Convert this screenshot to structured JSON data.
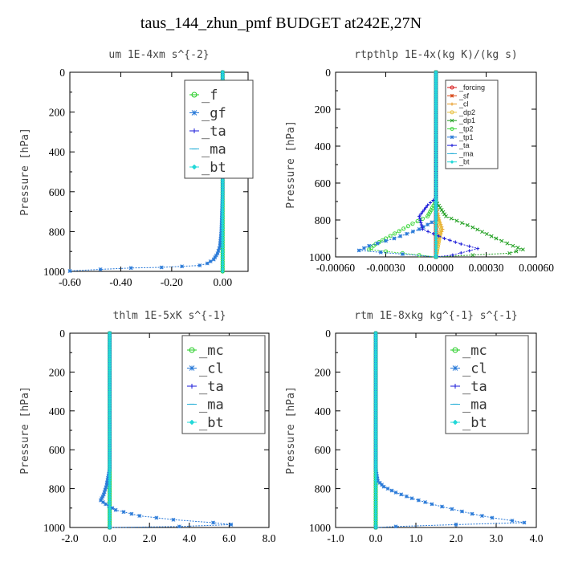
{
  "figure_title": "taus_144_zhun_pmf  BUDGET at242E,27N",
  "chart_data": [
    {
      "type": "line",
      "title": "um   1E-4xm s^{-2}",
      "ylabel": "Pressure [hPa]",
      "xlim": [
        -0.6,
        0.1
      ],
      "ylim": [
        1000,
        0
      ],
      "xticks": [
        "-0.60",
        "-0.40",
        "-0.20",
        "0.00"
      ],
      "xtick_values": [
        -0.6,
        -0.4,
        -0.2,
        0.0
      ],
      "yticks": [
        "0",
        "200",
        "400",
        "600",
        "800",
        "1000"
      ],
      "legend": {
        "position": "top-right",
        "style": "large"
      },
      "series": [
        {
          "name": "_f",
          "color": "#22cc22",
          "marker": "circle",
          "points": [
            [
              0,
              0
            ],
            [
              0,
              1000
            ]
          ]
        },
        {
          "name": "_gf",
          "color": "#2a7ad8",
          "marker": "star",
          "points": [
            [
              0,
              0
            ],
            [
              0,
              600
            ],
            [
              -0.005,
              800
            ],
            [
              -0.01,
              870
            ],
            [
              -0.02,
              910
            ],
            [
              -0.035,
              940
            ],
            [
              -0.06,
              960
            ],
            [
              -0.09,
              970
            ],
            [
              -0.16,
              975
            ],
            [
              -0.24,
              980
            ],
            [
              -0.36,
              983
            ],
            [
              -0.48,
              990
            ],
            [
              -0.6,
              998
            ]
          ]
        },
        {
          "name": "_ta",
          "color": "#1a1ad8",
          "marker": "plus",
          "points": [
            [
              0,
              0
            ],
            [
              0,
              1000
            ]
          ]
        },
        {
          "name": "_ma",
          "color": "#2ab0d8",
          "marker": "dash",
          "points": [
            [
              0,
              0
            ],
            [
              0,
              1000
            ]
          ]
        },
        {
          "name": "_bt",
          "color": "#22d8d8",
          "marker": "diamond",
          "points": [
            [
              0,
              0
            ],
            [
              0,
              1000
            ]
          ]
        }
      ]
    },
    {
      "type": "line",
      "title": "rtpthlp   1E-4x(kg K)/(kg s)",
      "ylabel": "Pressure [hPa]",
      "xlim": [
        -0.0006,
        0.0006
      ],
      "ylim": [
        1000,
        0
      ],
      "xticks": [
        "-0.00060",
        "-0.00030",
        "0.00000",
        "0.00030",
        "0.00060"
      ],
      "xtick_values": [
        -0.0006,
        -0.0003,
        0.0,
        0.0003,
        0.0006
      ],
      "yticks": [
        "0",
        "200",
        "400",
        "600",
        "800",
        "1000"
      ],
      "legend": {
        "position": "top-center",
        "style": "small"
      },
      "series": [
        {
          "name": "_forcing",
          "color": "#d81a1a",
          "marker": "circle",
          "points": [
            [
              0,
              0
            ],
            [
              0,
              1000
            ]
          ]
        },
        {
          "name": "_sf",
          "color": "#d84a1a",
          "marker": "star",
          "points": [
            [
              0,
              0
            ],
            [
              0,
              1000
            ]
          ]
        },
        {
          "name": "_cl",
          "color": "#e89a22",
          "marker": "plus",
          "points": [
            [
              0,
              0
            ],
            [
              0,
              700
            ],
            [
              2e-05,
              800
            ],
            [
              4e-05,
              850
            ],
            [
              2e-05,
              900
            ],
            [
              0,
              1000
            ]
          ]
        },
        {
          "name": "_dp2",
          "color": "#e8c040",
          "marker": "circle",
          "points": [
            [
              0,
              0
            ],
            [
              0,
              750
            ],
            [
              3e-05,
              850
            ],
            [
              0,
              1000
            ]
          ]
        },
        {
          "name": "_dp1",
          "color": "#22a022",
          "marker": "cross",
          "points": [
            [
              0,
              0
            ],
            [
              0,
              700
            ],
            [
              6e-05,
              780
            ],
            [
              0.00022,
              840
            ],
            [
              0.00036,
              900
            ],
            [
              0.00046,
              940
            ],
            [
              0.00052,
              960
            ],
            [
              0.00044,
              980
            ],
            [
              0,
              1000
            ]
          ]
        },
        {
          "name": "_tp2",
          "color": "#44d844",
          "marker": "circle",
          "points": [
            [
              0,
              0
            ],
            [
              0,
              700
            ],
            [
              -5e-05,
              780
            ],
            [
              -0.00014,
              820
            ],
            [
              -0.00022,
              860
            ],
            [
              -0.0003,
              900
            ],
            [
              -0.00036,
              930
            ],
            [
              -0.0004,
              960
            ],
            [
              -0.0001,
              990
            ],
            [
              0,
              1000
            ]
          ]
        },
        {
          "name": "_tp1",
          "color": "#2a7ad8",
          "marker": "star",
          "points": [
            [
              0,
              0
            ],
            [
              0,
              800
            ],
            [
              -0.0001,
              850
            ],
            [
              -0.00025,
              900
            ],
            [
              -0.0004,
              940
            ],
            [
              -0.00046,
              965
            ],
            [
              -0.0002,
              985
            ],
            [
              0,
              1000
            ]
          ]
        },
        {
          "name": "_ta",
          "color": "#1a1ad8",
          "marker": "plus",
          "points": [
            [
              0,
              0
            ],
            [
              0,
              680
            ],
            [
              -5e-05,
              720
            ],
            [
              -0.0001,
              780
            ],
            [
              -8e-05,
              850
            ],
            [
              5e-05,
              900
            ],
            [
              0.00015,
              930
            ],
            [
              0.00025,
              955
            ],
            [
              0.0001,
              990
            ],
            [
              0,
              1000
            ]
          ]
        },
        {
          "name": "_ma",
          "color": "#2ab0d8",
          "marker": "dash",
          "points": [
            [
              0,
              0
            ],
            [
              0,
              1000
            ]
          ]
        },
        {
          "name": "_bt",
          "color": "#22d8d8",
          "marker": "diamond",
          "points": [
            [
              0,
              0
            ],
            [
              0,
              1000
            ]
          ]
        }
      ]
    },
    {
      "type": "line",
      "title": "thlm   1E-5xK s^{-1}",
      "ylabel": "Pressure [hPa]",
      "xlim": [
        -2.0,
        8.0
      ],
      "ylim": [
        1000,
        0
      ],
      "xticks": [
        "-2.0",
        "0.0",
        "2.0",
        "4.0",
        "6.0",
        "8.0"
      ],
      "xtick_values": [
        -2,
        0,
        2,
        4,
        6,
        8
      ],
      "yticks": [
        "0",
        "200",
        "400",
        "600",
        "800",
        "1000"
      ],
      "legend": {
        "position": "top-right",
        "style": "large"
      },
      "series": [
        {
          "name": "_mc",
          "color": "#22cc22",
          "marker": "circle",
          "points": [
            [
              0,
              0
            ],
            [
              0,
              1000
            ]
          ]
        },
        {
          "name": "_cl",
          "color": "#2a7ad8",
          "marker": "star",
          "points": [
            [
              0,
              0
            ],
            [
              0,
              700
            ],
            [
              -0.15,
              780
            ],
            [
              -0.3,
              830
            ],
            [
              -0.45,
              860
            ],
            [
              -0.2,
              880
            ],
            [
              0.3,
              910
            ],
            [
              1.5,
              940
            ],
            [
              3.2,
              960
            ],
            [
              5.2,
              975
            ],
            [
              6.1,
              985
            ],
            [
              3.5,
              995
            ],
            [
              0,
              1000
            ]
          ]
        },
        {
          "name": "_ta",
          "color": "#1a1ad8",
          "marker": "plus",
          "points": [
            [
              0,
              0
            ],
            [
              0,
              1000
            ]
          ]
        },
        {
          "name": "_ma",
          "color": "#2ab0d8",
          "marker": "dash",
          "points": [
            [
              0,
              0
            ],
            [
              0,
              1000
            ]
          ]
        },
        {
          "name": "_bt",
          "color": "#22d8d8",
          "marker": "diamond",
          "points": [
            [
              0,
              0
            ],
            [
              0,
              1000
            ]
          ]
        }
      ]
    },
    {
      "type": "line",
      "title": "rtm   1E-8xkg kg^{-1} s^{-1}",
      "ylabel": "Pressure [hPa]",
      "xlim": [
        -1.0,
        4.0
      ],
      "ylim": [
        1000,
        0
      ],
      "xticks": [
        "-1.0",
        "0.0",
        "1.0",
        "2.0",
        "3.0",
        "4.0"
      ],
      "xtick_values": [
        -1,
        0,
        1,
        2,
        3,
        4
      ],
      "yticks": [
        "0",
        "200",
        "400",
        "600",
        "800",
        "1000"
      ],
      "legend": {
        "position": "top-right",
        "style": "large"
      },
      "series": [
        {
          "name": "_mc",
          "color": "#22cc22",
          "marker": "circle",
          "points": [
            [
              0,
              0
            ],
            [
              0,
              1000
            ]
          ]
        },
        {
          "name": "_cl",
          "color": "#2a7ad8",
          "marker": "star",
          "points": [
            [
              0,
              0
            ],
            [
              0,
              700
            ],
            [
              0.05,
              760
            ],
            [
              0.2,
              790
            ],
            [
              0.5,
              820
            ],
            [
              0.9,
              850
            ],
            [
              1.4,
              880
            ],
            [
              1.9,
              905
            ],
            [
              2.4,
              930
            ],
            [
              2.9,
              950
            ],
            [
              3.4,
              965
            ],
            [
              3.7,
              975
            ],
            [
              2.0,
              985
            ],
            [
              0.5,
              995
            ],
            [
              0,
              1000
            ]
          ]
        },
        {
          "name": "_ta",
          "color": "#1a1ad8",
          "marker": "plus",
          "points": [
            [
              0,
              0
            ],
            [
              0,
              1000
            ]
          ]
        },
        {
          "name": "_ma",
          "color": "#2ab0d8",
          "marker": "dash",
          "points": [
            [
              0,
              0
            ],
            [
              0,
              1000
            ]
          ]
        },
        {
          "name": "_bt",
          "color": "#22d8d8",
          "marker": "diamond",
          "points": [
            [
              0,
              0
            ],
            [
              0,
              1000
            ]
          ]
        }
      ]
    }
  ]
}
